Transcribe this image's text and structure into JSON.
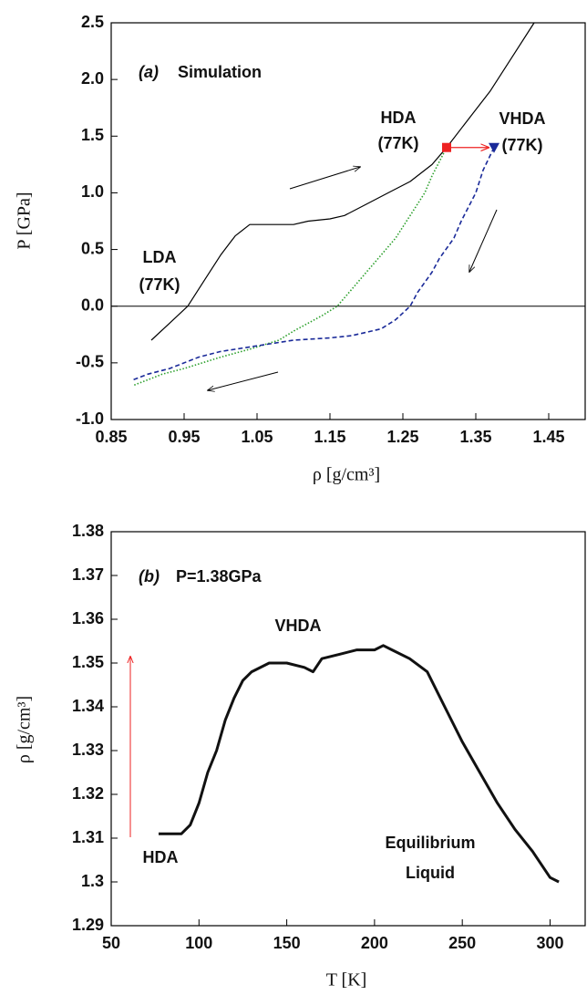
{
  "chart_data": [
    {
      "type": "line",
      "panel_label": "(a)",
      "subtitle": "Simulation",
      "x_label": "ρ [g/cm³]",
      "y_label": "P [GPa]",
      "xlim": [
        0.85,
        1.5
      ],
      "ylim": [
        -1.0,
        2.5
      ],
      "xticks": [
        0.85,
        0.95,
        1.05,
        1.15,
        1.25,
        1.35,
        1.45
      ],
      "yticks": [
        {
          "value": -1.0,
          "label": "-1.0"
        },
        -0.5,
        {
          "value": 0.0,
          "label": "0.0"
        },
        0.5,
        {
          "value": 1.0,
          "label": "1.0"
        },
        1.5,
        {
          "value": 2.0,
          "label": "2.0"
        },
        2.5
      ],
      "zero_line": true,
      "annotations": [
        [
          "HDA",
          "(77K)"
        ],
        [
          "VHDA",
          "(77K)"
        ],
        [
          "LDA",
          "(77K)"
        ]
      ],
      "series": [
        {
          "color": "#000000",
          "dash": "solid",
          "x": [
            0.905,
            0.93,
            0.955,
            0.98,
            1.0,
            1.02,
            1.04,
            1.07,
            1.1,
            1.12,
            1.15,
            1.17,
            1.2,
            1.23,
            1.26,
            1.29,
            1.31,
            1.34,
            1.37,
            1.4,
            1.43
          ],
          "values": [
            -0.3,
            -0.15,
            0.0,
            0.25,
            0.45,
            0.62,
            0.72,
            0.72,
            0.72,
            0.75,
            0.77,
            0.8,
            0.9,
            1.0,
            1.1,
            1.25,
            1.4,
            1.65,
            1.9,
            2.2,
            2.5
          ]
        },
        {
          "color": "#2ca02c",
          "dash": "dotted",
          "start_marker": "square",
          "marker_color": "#ee2222",
          "x": [
            1.31,
            1.29,
            1.28,
            1.26,
            1.24,
            1.22,
            1.2,
            1.18,
            1.16,
            1.14,
            1.12,
            1.1,
            1.08,
            1.04,
            1.0,
            0.95,
            0.92,
            0.9,
            0.88
          ],
          "values": [
            1.4,
            1.15,
            1.0,
            0.8,
            0.6,
            0.45,
            0.3,
            0.15,
            0.0,
            -0.08,
            -0.15,
            -0.22,
            -0.3,
            -0.38,
            -0.45,
            -0.55,
            -0.6,
            -0.65,
            -0.7
          ]
        },
        {
          "color": "#1a2a99",
          "dash": "dashed",
          "start_marker": "triangle",
          "marker_color": "#1a2a99",
          "x": [
            1.375,
            1.36,
            1.35,
            1.33,
            1.32,
            1.3,
            1.29,
            1.27,
            1.26,
            1.24,
            1.22,
            1.18,
            1.15,
            1.1,
            1.05,
            1.0,
            0.97,
            0.93,
            0.9,
            0.88
          ],
          "values": [
            1.4,
            1.2,
            1.0,
            0.75,
            0.6,
            0.42,
            0.3,
            0.12,
            0.0,
            -0.12,
            -0.2,
            -0.26,
            -0.28,
            -0.3,
            -0.35,
            -0.4,
            -0.45,
            -0.55,
            -0.6,
            -0.65
          ]
        }
      ]
    },
    {
      "type": "line",
      "panel_label": "(b)",
      "subtitle": "P=1.38GPa",
      "x_label": "T [K]",
      "y_label": "ρ [g/cm³]",
      "xlim": [
        50,
        320
      ],
      "ylim": [
        1.29,
        1.38
      ],
      "xticks": [
        50,
        100,
        150,
        200,
        250,
        300
      ],
      "yticks": [
        1.29,
        1.3,
        1.31,
        1.32,
        1.33,
        1.34,
        1.35,
        1.36,
        1.37,
        1.38
      ],
      "zero_line": false,
      "annotations": [
        [
          "VHDA"
        ],
        [
          "HDA"
        ],
        [
          "Equilibrium",
          "Liquid"
        ]
      ],
      "series": [
        {
          "color": "#111111",
          "dash": "solid",
          "noisy": true,
          "x": [
            77,
            85,
            90,
            95,
            100,
            105,
            110,
            115,
            120,
            125,
            130,
            140,
            150,
            160,
            165,
            170,
            180,
            190,
            200,
            205,
            210,
            220,
            230,
            240,
            250,
            260,
            270,
            280,
            290,
            300,
            305
          ],
          "values": [
            1.311,
            1.311,
            1.311,
            1.313,
            1.318,
            1.325,
            1.33,
            1.337,
            1.342,
            1.346,
            1.348,
            1.35,
            1.35,
            1.349,
            1.348,
            1.351,
            1.352,
            1.353,
            1.353,
            1.354,
            1.353,
            1.351,
            1.348,
            1.34,
            1.332,
            1.325,
            1.318,
            1.312,
            1.307,
            1.301,
            1.3
          ]
        }
      ]
    }
  ]
}
